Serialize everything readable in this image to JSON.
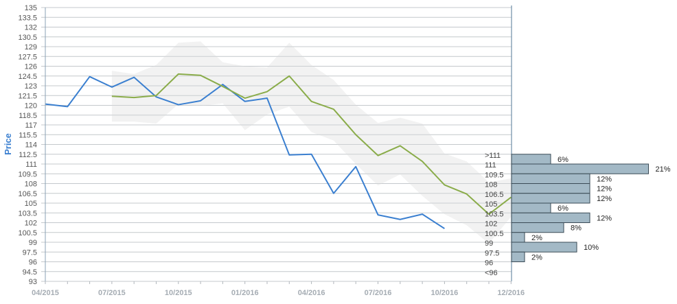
{
  "chart_data": {
    "type": "line",
    "ylabel": "Price",
    "ylim": [
      93,
      135
    ],
    "y_ticks": [
      "93",
      "94.5",
      "96",
      "97.5",
      "99",
      "100.5",
      "102",
      "103.5",
      "105",
      "106.5",
      "108",
      "109.5",
      "111",
      "112.5",
      "114",
      "115.5",
      "117",
      "118.5",
      "120",
      "121.5",
      "123",
      "124.5",
      "126",
      "127.5",
      "129",
      "130.5",
      "132",
      "133.5",
      "135"
    ],
    "x_ticks": [
      {
        "label": "04/2015",
        "t": 0
      },
      {
        "label": "07/2015",
        "t": 3
      },
      {
        "label": "10/2015",
        "t": 6
      },
      {
        "label": "01/2016",
        "t": 9
      },
      {
        "label": "04/2016",
        "t": 12
      },
      {
        "label": "07/2016",
        "t": 15
      },
      {
        "label": "10/2016",
        "t": 18
      },
      {
        "label": "12/2016",
        "t": 21
      }
    ],
    "grid": "horizontal",
    "series": [
      {
        "id": "price",
        "color": "#3a7fd0",
        "points": [
          [
            0,
            120.2
          ],
          [
            1,
            119.8
          ],
          [
            2,
            124.4
          ],
          [
            3,
            122.8
          ],
          [
            4,
            124.3
          ],
          [
            5,
            121.3
          ],
          [
            6,
            120.1
          ],
          [
            7,
            120.7
          ],
          [
            8,
            123.2
          ],
          [
            9,
            120.6
          ],
          [
            10,
            121.1
          ],
          [
            11,
            112.4
          ],
          [
            12,
            112.5
          ],
          [
            13,
            106.5
          ],
          [
            14,
            110.6
          ],
          [
            15,
            103.2
          ],
          [
            16,
            102.5
          ],
          [
            17,
            103.3
          ],
          [
            18,
            101.1
          ]
        ]
      },
      {
        "id": "forecast",
        "color": "#8aac4a",
        "points": [
          [
            3,
            121.4
          ],
          [
            4,
            121.2
          ],
          [
            5,
            121.5
          ],
          [
            6,
            124.8
          ],
          [
            7,
            124.6
          ],
          [
            8,
            122.9
          ],
          [
            9,
            121.1
          ],
          [
            10,
            122.1
          ],
          [
            11,
            124.5
          ],
          [
            12,
            120.6
          ],
          [
            13,
            119.4
          ],
          [
            14,
            115.5
          ],
          [
            15,
            112.3
          ],
          [
            16,
            113.8
          ],
          [
            17,
            111.4
          ],
          [
            18,
            107.8
          ],
          [
            19,
            106.4
          ],
          [
            20,
            103.3
          ],
          [
            21,
            105.9
          ]
        ]
      }
    ],
    "band": {
      "color": "#d9d9d9",
      "upper": [
        [
          3,
          125.3
        ],
        [
          4,
          124.8
        ],
        [
          5,
          126.2
        ],
        [
          6,
          129.6
        ],
        [
          7,
          129.8
        ],
        [
          8,
          126.6
        ],
        [
          9,
          126.0
        ],
        [
          10,
          125.8
        ],
        [
          11,
          129.6
        ],
        [
          12,
          126.2
        ],
        [
          13,
          123.9
        ],
        [
          14,
          120.1
        ],
        [
          15,
          117.3
        ],
        [
          16,
          118.1
        ],
        [
          17,
          117.2
        ],
        [
          18,
          112.6
        ],
        [
          19,
          111.4
        ],
        [
          20,
          108.2
        ],
        [
          21,
          108.8
        ]
      ],
      "lower": [
        [
          3,
          117.5
        ],
        [
          4,
          117.5
        ],
        [
          5,
          117.2
        ],
        [
          6,
          120.2
        ],
        [
          7,
          119.9
        ],
        [
          8,
          120.3
        ],
        [
          9,
          116.2
        ],
        [
          10,
          118.6
        ],
        [
          11,
          119.8
        ],
        [
          12,
          115.9
        ],
        [
          13,
          114.6
        ],
        [
          14,
          111.0
        ],
        [
          15,
          107.7
        ],
        [
          16,
          109.4
        ],
        [
          17,
          106.1
        ],
        [
          18,
          103.3
        ],
        [
          19,
          101.6
        ],
        [
          20,
          98.8
        ],
        [
          21,
          102.9
        ]
      ]
    },
    "distribution": {
      "color": "#a3b9c6",
      "border": "#3a4a55",
      "bins": [
        {
          "label": ">111",
          "lo": 111,
          "hi": 112.5,
          "pct": "6%",
          "value": 6
        },
        {
          "label": "111",
          "lo": 109.5,
          "hi": 111,
          "pct": "21%",
          "value": 21
        },
        {
          "label": "109.5",
          "lo": 108,
          "hi": 109.5,
          "pct": "12%",
          "value": 12
        },
        {
          "label": "108",
          "lo": 106.5,
          "hi": 108,
          "pct": "12%",
          "value": 12
        },
        {
          "label": "106.5",
          "lo": 105,
          "hi": 106.5,
          "pct": "12%",
          "value": 12
        },
        {
          "label": "105",
          "lo": 103.5,
          "hi": 105,
          "pct": "6%",
          "value": 6
        },
        {
          "label": "103.5",
          "lo": 102,
          "hi": 103.5,
          "pct": "12%",
          "value": 12
        },
        {
          "label": "102",
          "lo": 100.5,
          "hi": 102,
          "pct": "8%",
          "value": 8
        },
        {
          "label": "100.5",
          "lo": 99,
          "hi": 100.5,
          "pct": "2%",
          "value": 2
        },
        {
          "label": "99",
          "lo": 97.5,
          "hi": 99,
          "pct": "10%",
          "value": 10
        },
        {
          "label": "97.5",
          "lo": 96,
          "hi": 97.5,
          "pct": "2%",
          "value": 2
        },
        {
          "label": "96",
          "lo": 94.5,
          "hi": 96,
          "pct": "",
          "value": 0
        },
        {
          "label": "<96",
          "lo": 93,
          "hi": 94.5,
          "pct": "",
          "value": 0
        }
      ]
    }
  }
}
